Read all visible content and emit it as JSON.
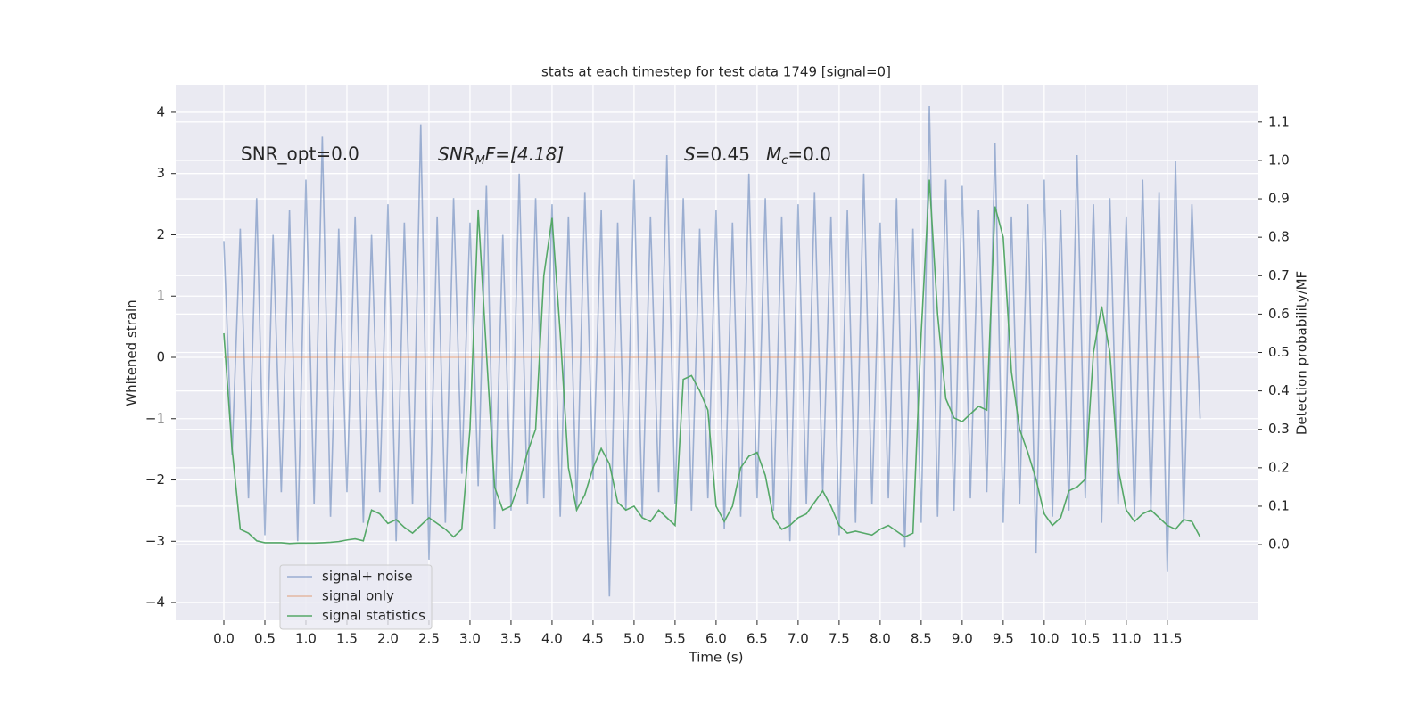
{
  "chart_data": {
    "type": "line",
    "title": "stats at each timestep for test data 1749 [signal=0]",
    "xlabel": "Time (s)",
    "ylabel": "Whitened strain",
    "y2label": "Detection probability/MF",
    "annotations": {
      "snr_opt": "SNR_opt=0.0",
      "snr_mf": [
        "SNR",
        "M",
        "F=[4.18]"
      ],
      "stats": [
        "S",
        "=0.45",
        "M",
        "c",
        "=0.0"
      ]
    },
    "xlim": [
      -0.587,
      12.6
    ],
    "ylim": [
      -4.29,
      4.45
    ],
    "y2lim": [
      -0.197,
      1.197
    ],
    "xticks": [
      {
        "value": 0,
        "label": "0.0"
      },
      {
        "value": 0.5,
        "label": "0.5"
      },
      {
        "value": 1,
        "label": "1.0"
      },
      {
        "value": 1.5,
        "label": "1.5"
      },
      {
        "value": 2,
        "label": "2.0"
      },
      {
        "value": 2.5,
        "label": "2.5"
      },
      {
        "value": 3,
        "label": "3.0"
      },
      {
        "value": 3.5,
        "label": "3.5"
      },
      {
        "value": 4,
        "label": "4.0"
      },
      {
        "value": 4.5,
        "label": "4.5"
      },
      {
        "value": 5,
        "label": "5.0"
      },
      {
        "value": 5.5,
        "label": "5.5"
      },
      {
        "value": 6,
        "label": "6.0"
      },
      {
        "value": 6.5,
        "label": "6.5"
      },
      {
        "value": 7,
        "label": "7.0"
      },
      {
        "value": 7.5,
        "label": "7.5"
      },
      {
        "value": 8,
        "label": "8.0"
      },
      {
        "value": 8.5,
        "label": "8.5"
      },
      {
        "value": 9,
        "label": "9.0"
      },
      {
        "value": 9.5,
        "label": "9.5"
      },
      {
        "value": 10,
        "label": "10.0"
      },
      {
        "value": 10.5,
        "label": "10.5"
      },
      {
        "value": 11,
        "label": "11.0"
      },
      {
        "value": 11.5,
        "label": "11.5"
      }
    ],
    "yticks": [
      {
        "value": -4,
        "label": "−4"
      },
      {
        "value": -3,
        "label": "−3"
      },
      {
        "value": -2,
        "label": "−2"
      },
      {
        "value": -1,
        "label": "−1"
      },
      0,
      1,
      2,
      3,
      4
    ],
    "y2ticks": [
      {
        "value": 0,
        "label": "0.0"
      },
      {
        "value": 0.1,
        "label": "0.1"
      },
      {
        "value": 0.2,
        "label": "0.2"
      },
      {
        "value": 0.3,
        "label": "0.3"
      },
      {
        "value": 0.4,
        "label": "0.4"
      },
      {
        "value": 0.5,
        "label": "0.5"
      },
      {
        "value": 0.6,
        "label": "0.6"
      },
      {
        "value": 0.7,
        "label": "0.7"
      },
      {
        "value": 0.8,
        "label": "0.8"
      },
      {
        "value": 0.9,
        "label": "0.9"
      },
      {
        "value": 1,
        "label": "1.0"
      },
      {
        "value": 1.1,
        "label": "1.1"
      }
    ],
    "grid": true,
    "legend": "lower left",
    "x": [
      0,
      0.1,
      0.2,
      0.3,
      0.4,
      0.5,
      0.6,
      0.7,
      0.8,
      0.9,
      1,
      1.1,
      1.2,
      1.3,
      1.4,
      1.5,
      1.6,
      1.7,
      1.8,
      1.9,
      2,
      2.1,
      2.2,
      2.3,
      2.4,
      2.5,
      2.6,
      2.7,
      2.8,
      2.9,
      3,
      3.1,
      3.2,
      3.3,
      3.4,
      3.5,
      3.6,
      3.7,
      3.8,
      3.9,
      4,
      4.1,
      4.2,
      4.3,
      4.4,
      4.5,
      4.6,
      4.7,
      4.8,
      4.9,
      5,
      5.1,
      5.2,
      5.3,
      5.4,
      5.5,
      5.6,
      5.7,
      5.8,
      5.9,
      6,
      6.1,
      6.2,
      6.3,
      6.4,
      6.5,
      6.6,
      6.7,
      6.8,
      6.9,
      7,
      7.1,
      7.2,
      7.3,
      7.4,
      7.5,
      7.6,
      7.7,
      7.8,
      7.9,
      8,
      8.1,
      8.2,
      8.3,
      8.4,
      8.5,
      8.6,
      8.7,
      8.8,
      8.9,
      9,
      9.1,
      9.2,
      9.3,
      9.4,
      9.5,
      9.6,
      9.7,
      9.8,
      9.9,
      10,
      10.1,
      10.2,
      10.3,
      10.4,
      10.5,
      10.6,
      10.7,
      10.8,
      10.9,
      11,
      11.1,
      11.2,
      11.3,
      11.4,
      11.5,
      11.6,
      11.7,
      11.8,
      11.9
    ],
    "series": [
      {
        "name": "signal+ noise",
        "color": "#4c72b0",
        "alpha": 0.5,
        "axis": "y",
        "values": [
          1.9,
          -1.6,
          2.1,
          -2.3,
          2.6,
          -2.9,
          2.0,
          -2.2,
          2.4,
          -3.0,
          2.9,
          -2.4,
          3.6,
          -2.6,
          2.1,
          -2.2,
          2.3,
          -2.7,
          2.0,
          -2.2,
          2.5,
          -3.0,
          2.2,
          -2.4,
          3.8,
          -3.3,
          2.3,
          -2.7,
          2.6,
          -1.9,
          2.2,
          -2.1,
          2.8,
          -2.8,
          2.0,
          -2.5,
          3.0,
          -2.4,
          2.6,
          -2.3,
          2.5,
          -2.6,
          2.3,
          -2.5,
          2.7,
          -2.0,
          2.4,
          -3.9,
          2.2,
          -2.5,
          2.9,
          -2.6,
          2.3,
          -2.2,
          3.3,
          -2.4,
          2.6,
          -2.5,
          2.1,
          -2.3,
          2.4,
          -2.8,
          2.2,
          -2.6,
          3.0,
          -2.3,
          2.6,
          -2.5,
          2.3,
          -3.0,
          2.5,
          -2.4,
          2.7,
          -2.2,
          2.3,
          -2.9,
          2.4,
          -2.7,
          3.0,
          -2.4,
          2.2,
          -2.3,
          2.6,
          -3.1,
          2.1,
          -2.7,
          4.1,
          -2.6,
          2.9,
          -2.5,
          2.8,
          -2.3,
          2.4,
          -2.2,
          3.5,
          -2.7,
          2.3,
          -2.4,
          2.5,
          -3.2,
          2.9,
          -2.6,
          2.4,
          -2.5,
          3.3,
          -2.3,
          2.5,
          -2.7,
          2.6,
          -2.4,
          2.3,
          -2.6,
          2.9,
          -2.5,
          2.7,
          -3.5,
          3.2,
          -2.7,
          2.5,
          -1.0
        ]
      },
      {
        "name": "signal only",
        "color": "#dd8452",
        "alpha": 0.5,
        "axis": "y",
        "values": [
          0,
          0,
          0,
          0,
          0,
          0,
          0,
          0,
          0,
          0,
          0,
          0,
          0,
          0,
          0,
          0,
          0,
          0,
          0,
          0,
          0,
          0,
          0,
          0,
          0,
          0,
          0,
          0,
          0,
          0,
          0,
          0,
          0,
          0,
          0,
          0,
          0,
          0,
          0,
          0,
          0,
          0,
          0,
          0,
          0,
          0,
          0,
          0,
          0,
          0,
          0,
          0,
          0,
          0,
          0,
          0,
          0,
          0,
          0,
          0,
          0,
          0,
          0,
          0,
          0,
          0,
          0,
          0,
          0,
          0,
          0,
          0,
          0,
          0,
          0,
          0,
          0,
          0,
          0,
          0,
          0,
          0,
          0,
          0,
          0,
          0,
          0,
          0,
          0,
          0,
          0,
          0,
          0,
          0,
          0,
          0,
          0,
          0,
          0,
          0,
          0,
          0,
          0,
          0,
          0,
          0,
          0,
          0,
          0,
          0,
          0,
          0,
          0,
          0,
          0,
          0,
          0,
          0,
          0,
          0
        ]
      },
      {
        "name": "signal statistics",
        "color": "#55a868",
        "alpha": 1,
        "axis": "y2",
        "values": [
          0.55,
          0.25,
          0.04,
          0.03,
          0.01,
          0.005,
          0.005,
          0.005,
          0.003,
          0.004,
          0.004,
          0.004,
          0.005,
          0.006,
          0.008,
          0.012,
          0.015,
          0.01,
          0.09,
          0.08,
          0.055,
          0.065,
          0.045,
          0.03,
          0.05,
          0.07,
          0.055,
          0.04,
          0.02,
          0.04,
          0.3,
          0.87,
          0.5,
          0.15,
          0.09,
          0.1,
          0.16,
          0.24,
          0.3,
          0.7,
          0.85,
          0.55,
          0.2,
          0.09,
          0.13,
          0.2,
          0.25,
          0.21,
          0.11,
          0.09,
          0.1,
          0.07,
          0.06,
          0.09,
          0.07,
          0.05,
          0.43,
          0.44,
          0.4,
          0.35,
          0.1,
          0.06,
          0.1,
          0.2,
          0.23,
          0.24,
          0.18,
          0.07,
          0.04,
          0.05,
          0.07,
          0.08,
          0.11,
          0.14,
          0.1,
          0.05,
          0.03,
          0.035,
          0.03,
          0.025,
          0.04,
          0.05,
          0.035,
          0.02,
          0.03,
          0.55,
          0.95,
          0.6,
          0.38,
          0.33,
          0.32,
          0.34,
          0.36,
          0.35,
          0.88,
          0.8,
          0.45,
          0.3,
          0.24,
          0.17,
          0.08,
          0.05,
          0.07,
          0.14,
          0.15,
          0.17,
          0.5,
          0.62,
          0.5,
          0.2,
          0.09,
          0.06,
          0.08,
          0.09,
          0.07,
          0.05,
          0.04,
          0.065,
          0.06,
          0.02
        ]
      }
    ]
  }
}
